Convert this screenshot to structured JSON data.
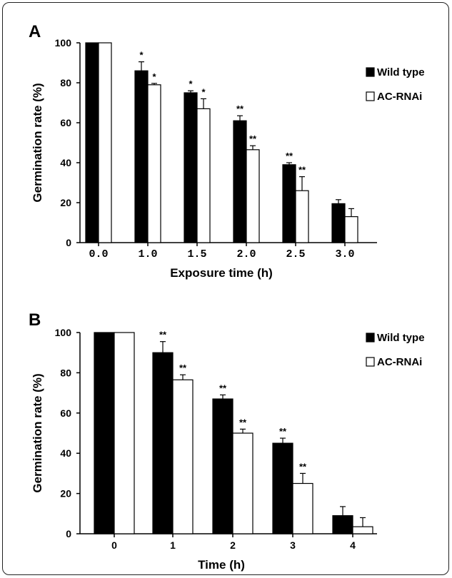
{
  "chart_data": [
    {
      "panel": "A",
      "type": "bar",
      "categories": [
        "0.0",
        "1.0",
        "1.5",
        "2.0",
        "2.5",
        "3.0"
      ],
      "series": [
        {
          "name": "Wild type",
          "color": "#000000",
          "values": [
            100,
            86,
            75,
            61,
            39,
            19.5
          ],
          "errors": [
            0,
            4.5,
            1,
            2.5,
            1,
            2
          ],
          "marks": [
            "",
            "*",
            "*",
            "**",
            "**",
            ""
          ]
        },
        {
          "name": "AC-RNAi",
          "color": "#ffffff",
          "values": [
            100,
            79,
            67,
            46.5,
            26,
            13
          ],
          "errors": [
            0,
            0.7,
            5,
            2,
            7,
            4
          ],
          "marks": [
            "",
            "*",
            "*",
            "**",
            "**",
            ""
          ]
        }
      ],
      "xlabel": "Exposure time (h)",
      "ylabel": "Germination rate (%)",
      "ylim": [
        0,
        100
      ],
      "yticks": [
        "0",
        "20",
        "40",
        "60",
        "80",
        "100"
      ],
      "legend_position": "right",
      "grid": false
    },
    {
      "panel": "B",
      "type": "bar",
      "categories": [
        "0",
        "1",
        "2",
        "3",
        "4"
      ],
      "series": [
        {
          "name": "Wild type",
          "color": "#000000",
          "values": [
            100,
            90,
            67,
            45,
            9
          ],
          "errors": [
            0,
            5.5,
            2,
            2.5,
            4.5
          ],
          "marks": [
            "",
            "**",
            "**",
            "**",
            ""
          ]
        },
        {
          "name": "AC-RNAi",
          "color": "#ffffff",
          "values": [
            100,
            76.5,
            50,
            25,
            3.5
          ],
          "errors": [
            0,
            2.5,
            2,
            5,
            4.5
          ],
          "marks": [
            "",
            "**",
            "**",
            "**",
            ""
          ]
        }
      ],
      "xlabel": "Time  (h)",
      "ylabel": "Germination rate (%)",
      "ylim": [
        0,
        100
      ],
      "yticks": [
        "0",
        "20",
        "40",
        "60",
        "80",
        "100"
      ],
      "legend_position": "right",
      "grid": false
    }
  ]
}
